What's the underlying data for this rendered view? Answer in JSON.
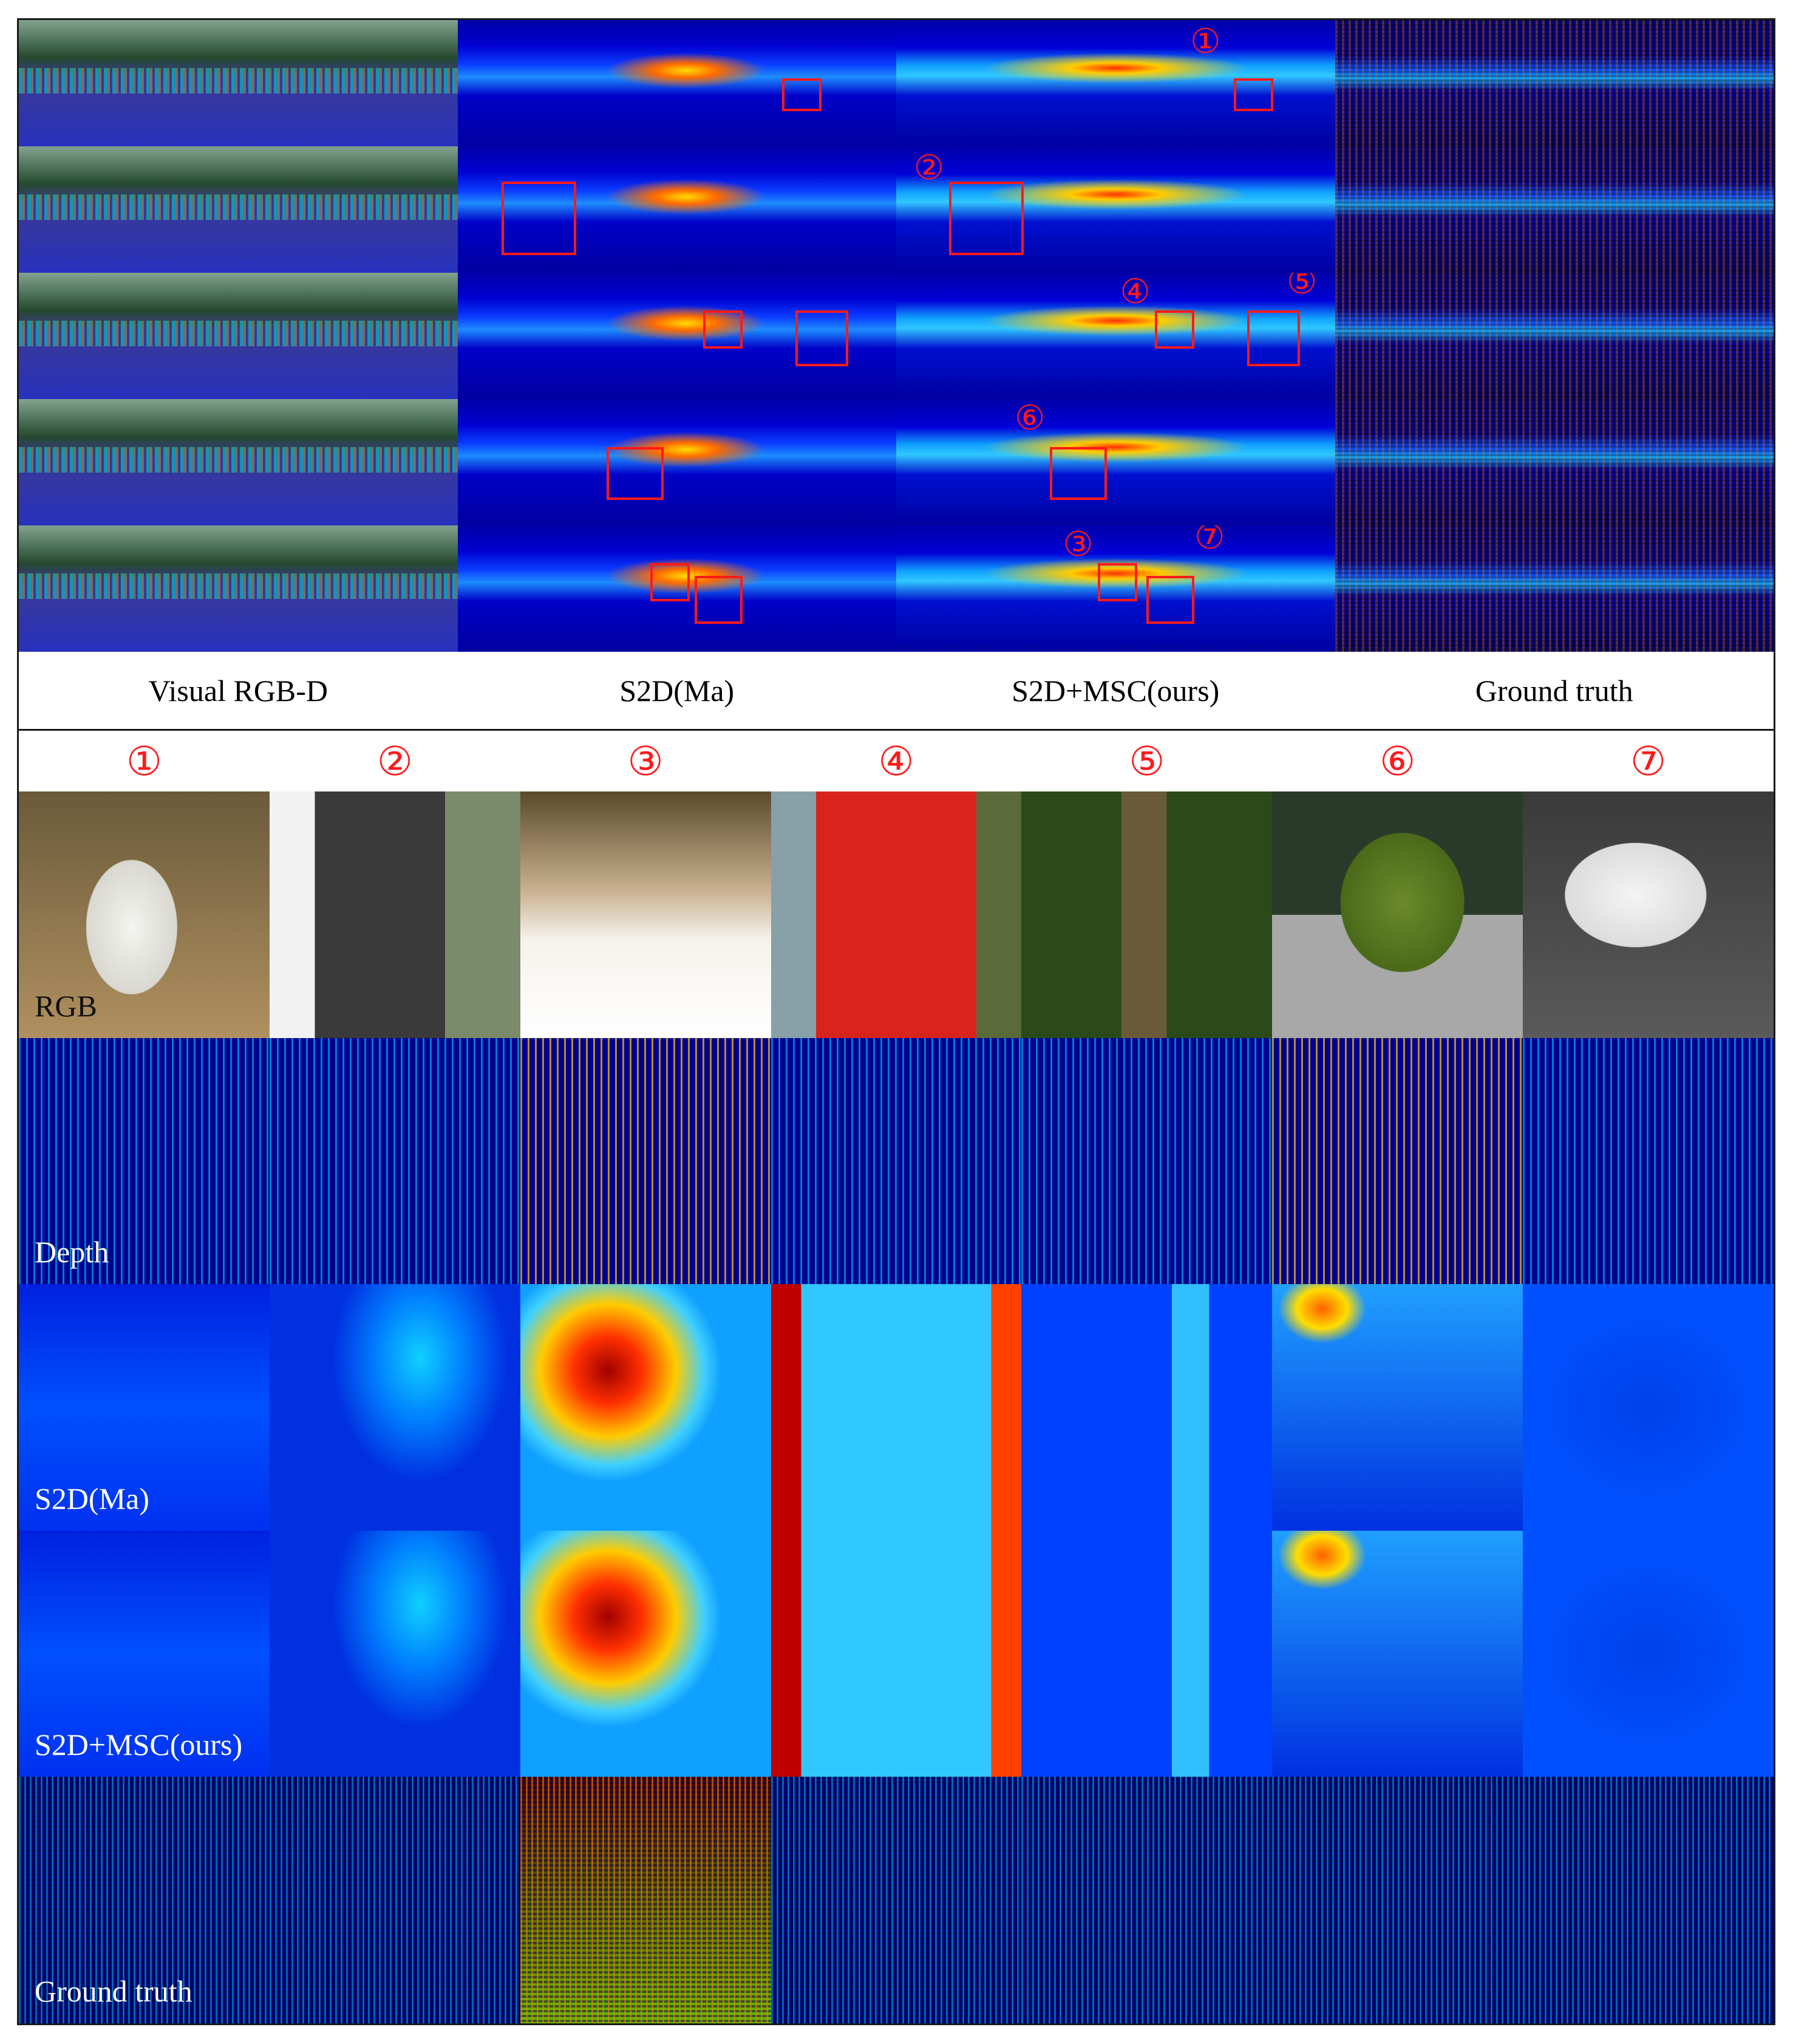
{
  "top_panel": {
    "column_captions": [
      "Visual RGB-D",
      "S2D(Ma)",
      "S2D+MSC(ours)",
      "Ground truth"
    ],
    "markers": [
      "①",
      "②",
      "③",
      "④",
      "⑤",
      "⑥",
      "⑦"
    ]
  },
  "bottom_panel": {
    "column_numbers": [
      "①",
      "②",
      "③",
      "④",
      "⑤",
      "⑥",
      "⑦"
    ],
    "row_labels": [
      "RGB",
      "Depth",
      "S2D(Ma)",
      "S2D+MSC(ours)",
      "Ground truth"
    ]
  },
  "colors": {
    "marker_red": "#ff1a1a",
    "border": "#1a1a1a"
  }
}
